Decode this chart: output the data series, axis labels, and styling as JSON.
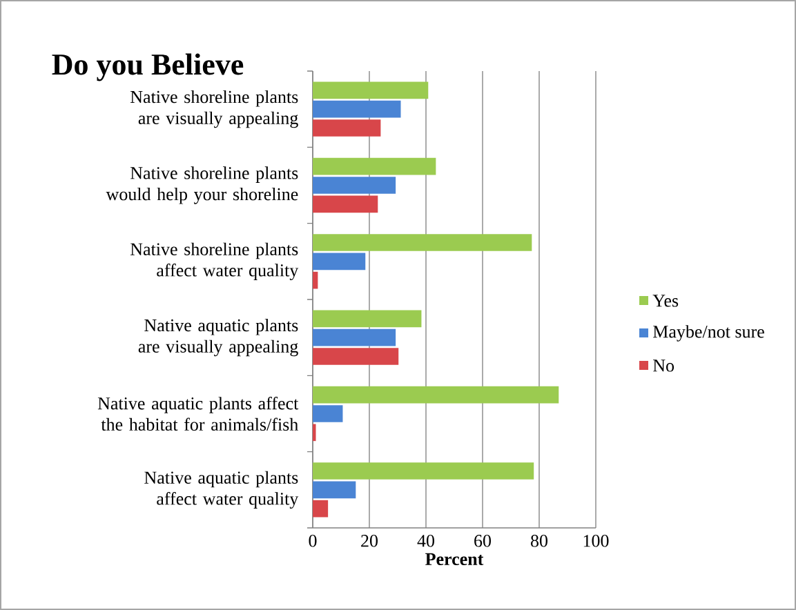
{
  "chart_data": {
    "type": "bar",
    "orientation": "horizontal",
    "title": "Do you Believe",
    "xlabel": "Percent",
    "categories": [
      "Native shoreline plants are visually appealing",
      "Native shoreline plants would help your shoreline",
      "Native shoreline plants affect water quality",
      "Native aquatic plants are visually appealing",
      "Native aquatic plants affect the habitat for animals/fish",
      "Native aquatic plants affect water quality"
    ],
    "series": [
      {
        "name": "Yes",
        "color": "#9bcb50",
        "values": [
          40.8,
          43.5,
          77.4,
          38.4,
          86.9,
          78.1
        ]
      },
      {
        "name": "Maybe/not sure",
        "color": "#4a84d4",
        "values": [
          31.1,
          29.3,
          18.6,
          29.3,
          10.6,
          15.2
        ]
      },
      {
        "name": "No",
        "color": "#d8464a",
        "values": [
          24.0,
          23.0,
          1.8,
          30.3,
          1.1,
          5.4
        ]
      }
    ],
    "xlim": [
      0,
      100
    ],
    "xticks": [
      0,
      20,
      40,
      60,
      80,
      100
    ],
    "grid": "x",
    "legend": "right"
  }
}
